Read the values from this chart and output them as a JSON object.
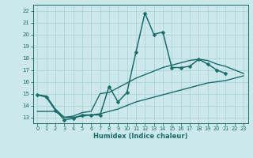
{
  "xlabel": "Humidex (Indice chaleur)",
  "xlim": [
    -0.5,
    23.5
  ],
  "ylim": [
    12.5,
    22.5
  ],
  "yticks": [
    13,
    14,
    15,
    16,
    17,
    18,
    19,
    20,
    21,
    22
  ],
  "xticks": [
    0,
    1,
    2,
    3,
    4,
    5,
    6,
    7,
    8,
    9,
    10,
    11,
    12,
    13,
    14,
    15,
    16,
    17,
    18,
    19,
    20,
    21,
    22,
    23
  ],
  "bg_color": "#cce8eb",
  "line_color": "#1a6b6b",
  "grid_color": "#b0d8dc",
  "lines": [
    {
      "x": [
        0,
        1,
        2,
        3,
        4,
        5,
        6,
        7,
        8,
        9,
        10,
        11,
        12,
        13,
        14,
        15,
        16,
        17,
        18,
        19,
        20,
        21
      ],
      "y": [
        14.9,
        14.7,
        13.6,
        12.8,
        12.9,
        13.2,
        13.2,
        13.2,
        15.6,
        14.3,
        15.1,
        18.5,
        21.8,
        20.0,
        20.2,
        17.2,
        17.2,
        17.3,
        17.9,
        17.5,
        17.0,
        16.7
      ],
      "marker": true,
      "markersize": 2.5,
      "linewidth": 1.1
    },
    {
      "x": [
        0,
        1,
        2,
        3,
        4,
        5,
        6,
        7,
        8,
        9,
        10,
        11,
        12,
        13,
        14,
        15,
        16,
        17,
        18,
        19,
        20,
        21,
        22,
        23
      ],
      "y": [
        14.9,
        14.8,
        13.7,
        13.0,
        13.1,
        13.4,
        13.5,
        15.0,
        15.1,
        15.5,
        15.9,
        16.3,
        16.6,
        16.9,
        17.2,
        17.4,
        17.6,
        17.8,
        17.9,
        17.8,
        17.5,
        17.3,
        17.0,
        16.7
      ],
      "marker": false,
      "linewidth": 1.0
    },
    {
      "x": [
        0,
        1,
        2,
        3,
        4,
        5,
        6,
        7,
        8,
        9,
        10,
        11,
        12,
        13,
        14,
        15,
        16,
        17,
        18,
        19,
        20,
        21,
        22,
        23
      ],
      "y": [
        13.5,
        13.5,
        13.5,
        13.0,
        13.0,
        13.1,
        13.2,
        13.3,
        13.5,
        13.7,
        14.0,
        14.3,
        14.5,
        14.7,
        14.9,
        15.1,
        15.3,
        15.5,
        15.7,
        15.9,
        16.0,
        16.1,
        16.3,
        16.5
      ],
      "marker": false,
      "linewidth": 1.0
    }
  ]
}
